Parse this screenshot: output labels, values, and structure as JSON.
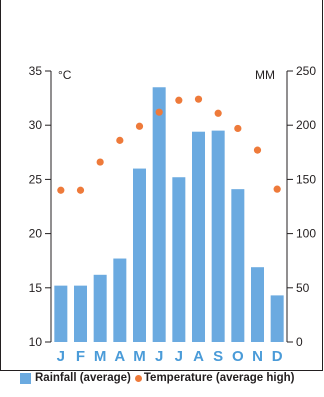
{
  "chart_data": {
    "type": "bar+scatter",
    "categories": [
      "J",
      "F",
      "M",
      "A",
      "M",
      "J",
      "J",
      "A",
      "S",
      "O",
      "N",
      "D"
    ],
    "left_axis": {
      "unit": "°C",
      "ylim": [
        10,
        35
      ],
      "ticks": [
        10,
        15,
        20,
        25,
        30,
        35
      ]
    },
    "right_axis": {
      "unit": "MM",
      "ylim": [
        0,
        250
      ],
      "ticks": [
        0,
        50,
        100,
        150,
        200,
        250
      ]
    },
    "series": [
      {
        "name": "Rainfall (average)",
        "type": "bar",
        "axis": "right",
        "values": [
          52,
          52,
          62,
          77,
          160,
          235,
          152,
          194,
          195,
          141,
          69,
          43
        ]
      },
      {
        "name": "Temperature (average high)",
        "type": "scatter",
        "axis": "left",
        "values": [
          24,
          24,
          26.6,
          28.6,
          29.9,
          31.2,
          32.3,
          32.4,
          31.1,
          29.7,
          27.7,
          24.1
        ]
      }
    ],
    "colors": {
      "bar": "#6baae0",
      "point": "#ee7a3a",
      "month": "#4a9bd8",
      "axis": "#231f20"
    },
    "grid": false,
    "legend_position": "bottom"
  }
}
